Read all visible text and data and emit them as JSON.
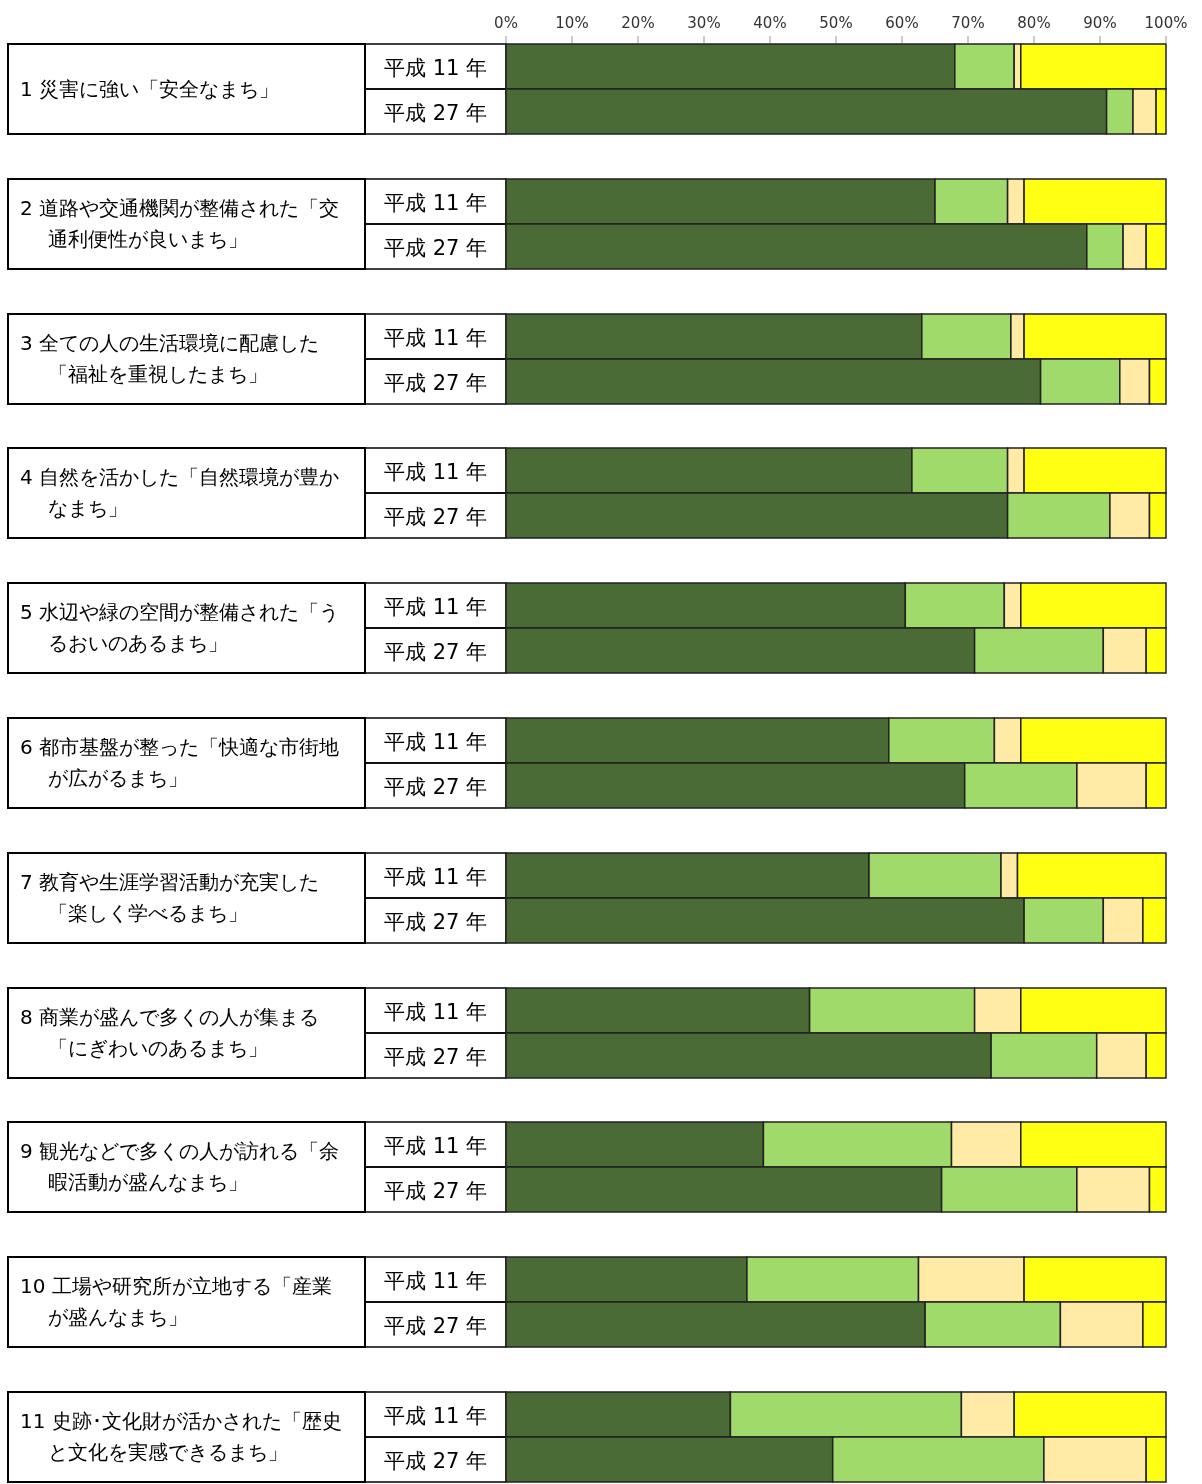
{
  "chart_data": [
    {
      "type": "bar",
      "orientation": "horizontal",
      "stacked": true,
      "title": "1 災害に強い「安全なまち」",
      "categories": [
        "平成 11 年",
        "平成 27 年"
      ],
      "xlim": [
        0,
        100
      ],
      "xticks": [
        {
          "value": 0,
          "label": "0%"
        },
        {
          "value": 10,
          "label": "10%"
        },
        {
          "value": 20,
          "label": "20%"
        },
        {
          "value": 30,
          "label": "30%"
        },
        {
          "value": 40,
          "label": "40%"
        },
        {
          "value": 50,
          "label": "50%"
        },
        {
          "value": 60,
          "label": "60%"
        },
        {
          "value": 70,
          "label": "70%"
        },
        {
          "value": 80,
          "label": "80%"
        },
        {
          "value": 90,
          "label": "90%"
        },
        {
          "value": 100,
          "label": "100%"
        }
      ],
      "series": [
        {
          "color": "#4a6a36",
          "values": [
            68,
            91
          ]
        },
        {
          "color": "#a0da6a",
          "values": [
            9,
            4
          ]
        },
        {
          "color": "#ffeaa6",
          "values": [
            1,
            3.5
          ]
        },
        {
          "color": "#ffff14",
          "values": [
            22,
            1.5
          ]
        }
      ]
    },
    {
      "type": "bar",
      "orientation": "horizontal",
      "stacked": true,
      "title": "2 道路や交通機関が整備された「交通利便性が良いまち」",
      "categories": [
        "平成 11 年",
        "平成 27 年"
      ],
      "xlim": [
        0,
        100
      ],
      "tick_labels": "y",
      "series": [
        {
          "color": "#4a6a36",
          "values": [
            65,
            88
          ]
        },
        {
          "color": "#a0da6a",
          "values": [
            11,
            5.5
          ]
        },
        {
          "color": "#ffeaa6",
          "values": [
            2.5,
            3.5
          ]
        },
        {
          "color": "#ffff14",
          "values": [
            21.5,
            3
          ]
        }
      ]
    },
    {
      "type": "bar",
      "orientation": "horizontal",
      "stacked": true,
      "title": "3 全ての人の生活環境に配慮した「福祉を重視したまち」",
      "categories": [
        "平成 11 年",
        "平成 27 年"
      ],
      "xlim": [
        0,
        100
      ],
      "tick_labels": "y",
      "series": [
        {
          "color": "#4a6a36",
          "values": [
            63,
            81
          ]
        },
        {
          "color": "#a0da6a",
          "values": [
            13.5,
            12
          ]
        },
        {
          "color": "#ffeaa6",
          "values": [
            2,
            4.5
          ]
        },
        {
          "color": "#ffff14",
          "values": [
            21.5,
            2.5
          ]
        }
      ]
    },
    {
      "type": "bar",
      "orientation": "horizontal",
      "stacked": true,
      "title": "4 自然を活かした「自然環境が豊かなまち」",
      "categories": [
        "平成 11 年",
        "平成 27 年"
      ],
      "xlim": [
        0,
        100
      ],
      "tick_labels": "y",
      "series": [
        {
          "color": "#4a6a36",
          "values": [
            61.5,
            76
          ]
        },
        {
          "color": "#a0da6a",
          "values": [
            14.5,
            15.5
          ]
        },
        {
          "color": "#ffeaa6",
          "values": [
            2.5,
            6
          ]
        },
        {
          "color": "#ffff14",
          "values": [
            21.5,
            2.5
          ]
        }
      ]
    },
    {
      "type": "bar",
      "orientation": "horizontal",
      "stacked": true,
      "title": "5 水辺や緑の空間が整備された「うるおいのあるまち」",
      "categories": [
        "平成 11 年",
        "平成 27 年"
      ],
      "xlim": [
        0,
        100
      ],
      "tick_labels": "y",
      "series": [
        {
          "color": "#4a6a36",
          "values": [
            60.5,
            71
          ]
        },
        {
          "color": "#a0da6a",
          "values": [
            15,
            19.5
          ]
        },
        {
          "color": "#ffeaa6",
          "values": [
            2.5,
            6.5
          ]
        },
        {
          "color": "#ffff14",
          "values": [
            22,
            3
          ]
        }
      ]
    },
    {
      "type": "bar",
      "orientation": "horizontal",
      "stacked": true,
      "title": "6 都市基盤が整った「快適な市街地が広がるまち」",
      "categories": [
        "平成 11 年",
        "平成 27 年"
      ],
      "xlim": [
        0,
        100
      ],
      "tick_labels": "y",
      "series": [
        {
          "color": "#4a6a36",
          "values": [
            58,
            69.5
          ]
        },
        {
          "color": "#a0da6a",
          "values": [
            16,
            17
          ]
        },
        {
          "color": "#ffeaa6",
          "values": [
            4,
            10.5
          ]
        },
        {
          "color": "#ffff14",
          "values": [
            22,
            3
          ]
        }
      ]
    },
    {
      "type": "bar",
      "orientation": "horizontal",
      "stacked": true,
      "title": "7 教育や生涯学習活動が充実した「楽しく学べるまち」",
      "categories": [
        "平成 11 年",
        "平成 27 年"
      ],
      "xlim": [
        0,
        100
      ],
      "tick_labels": "y",
      "series": [
        {
          "color": "#4a6a36",
          "values": [
            55,
            78.5
          ]
        },
        {
          "color": "#a0da6a",
          "values": [
            20,
            12
          ]
        },
        {
          "color": "#ffeaa6",
          "values": [
            2.5,
            6
          ]
        },
        {
          "color": "#ffff14",
          "values": [
            22.5,
            3.5
          ]
        }
      ]
    },
    {
      "type": "bar",
      "orientation": "horizontal",
      "stacked": true,
      "title": "8 商業が盛んで多くの人が集まる「にぎわいのあるまち」",
      "categories": [
        "平成 11 年",
        "平成 27 年"
      ],
      "xlim": [
        0,
        100
      ],
      "tick_labels": "y",
      "series": [
        {
          "color": "#4a6a36",
          "values": [
            46,
            73.5
          ]
        },
        {
          "color": "#a0da6a",
          "values": [
            25,
            16
          ]
        },
        {
          "color": "#ffeaa6",
          "values": [
            7,
            7.5
          ]
        },
        {
          "color": "#ffff14",
          "values": [
            22,
            3
          ]
        }
      ]
    },
    {
      "type": "bar",
      "orientation": "horizontal",
      "stacked": true,
      "title": "9 観光などで多くの人が訪れる「余暇活動が盛んなまち」",
      "categories": [
        "平成 11 年",
        "平成 27 年"
      ],
      "xlim": [
        0,
        100
      ],
      "tick_labels": "y",
      "series": [
        {
          "color": "#4a6a36",
          "values": [
            39,
            66
          ]
        },
        {
          "color": "#a0da6a",
          "values": [
            28.5,
            20.5
          ]
        },
        {
          "color": "#ffeaa6",
          "values": [
            10.5,
            11
          ]
        },
        {
          "color": "#ffff14",
          "values": [
            22,
            2.5
          ]
        }
      ]
    },
    {
      "type": "bar",
      "orientation": "horizontal",
      "stacked": true,
      "title": "10 工場や研究所が立地する「産業が盛んなまち」",
      "categories": [
        "平成 11 年",
        "平成 27 年"
      ],
      "xlim": [
        0,
        100
      ],
      "tick_labels": "y",
      "series": [
        {
          "color": "#4a6a36",
          "values": [
            36.5,
            63.5
          ]
        },
        {
          "color": "#a0da6a",
          "values": [
            26,
            20.5
          ]
        },
        {
          "color": "#ffeaa6",
          "values": [
            16,
            12.5
          ]
        },
        {
          "color": "#ffff14",
          "values": [
            21.5,
            3.5
          ]
        }
      ]
    },
    {
      "type": "bar",
      "orientation": "horizontal",
      "stacked": true,
      "title": "11 史跡･文化財が活かされた「歴史と文化を実感できるまち」",
      "categories": [
        "平成 11 年",
        "平成 27 年"
      ],
      "xlim": [
        0,
        100
      ],
      "tick_labels": "y",
      "series": [
        {
          "color": "#4a6a36",
          "values": [
            34,
            49.5
          ]
        },
        {
          "color": "#a0da6a",
          "values": [
            35,
            32
          ]
        },
        {
          "color": "#ffeaa6",
          "values": [
            8,
            15.5
          ]
        },
        {
          "color": "#ffff14",
          "values": [
            23,
            3
          ]
        }
      ]
    }
  ]
}
